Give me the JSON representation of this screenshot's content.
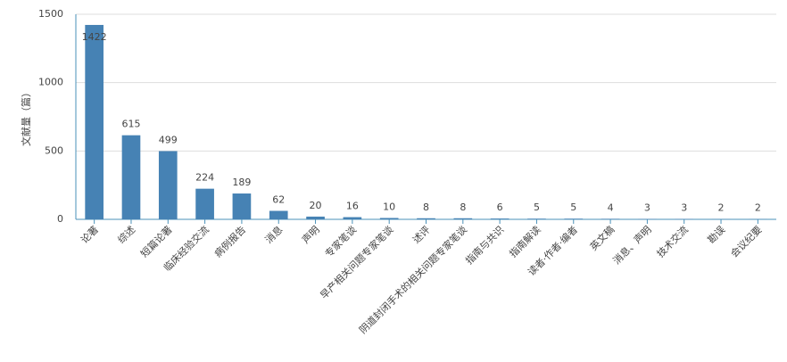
{
  "chart_data": {
    "type": "bar",
    "y_label": "文献量（篇）",
    "categories": [
      "论著",
      "综述",
      "短篇论著",
      "临床经验交流",
      "病例报告",
      "消息",
      "声明",
      "专家笔谈",
      "早产相关问题专家笔谈",
      "述评",
      "阴道封闭手术的相关问题专家笔谈",
      "指南与共识",
      "指南解读",
      "读者·作者·编者",
      "英文稿",
      "消息、声明",
      "技术交流",
      "勘误",
      "会议纪要"
    ],
    "values": [
      1422,
      615,
      499,
      224,
      189,
      62,
      20,
      16,
      10,
      8,
      8,
      6,
      5,
      5,
      4,
      3,
      3,
      2,
      2
    ],
    "color": "#4682b4",
    "ylim": [
      0,
      1500
    ],
    "yticks": [
      0,
      500,
      1000,
      1500
    ],
    "grid": true
  }
}
